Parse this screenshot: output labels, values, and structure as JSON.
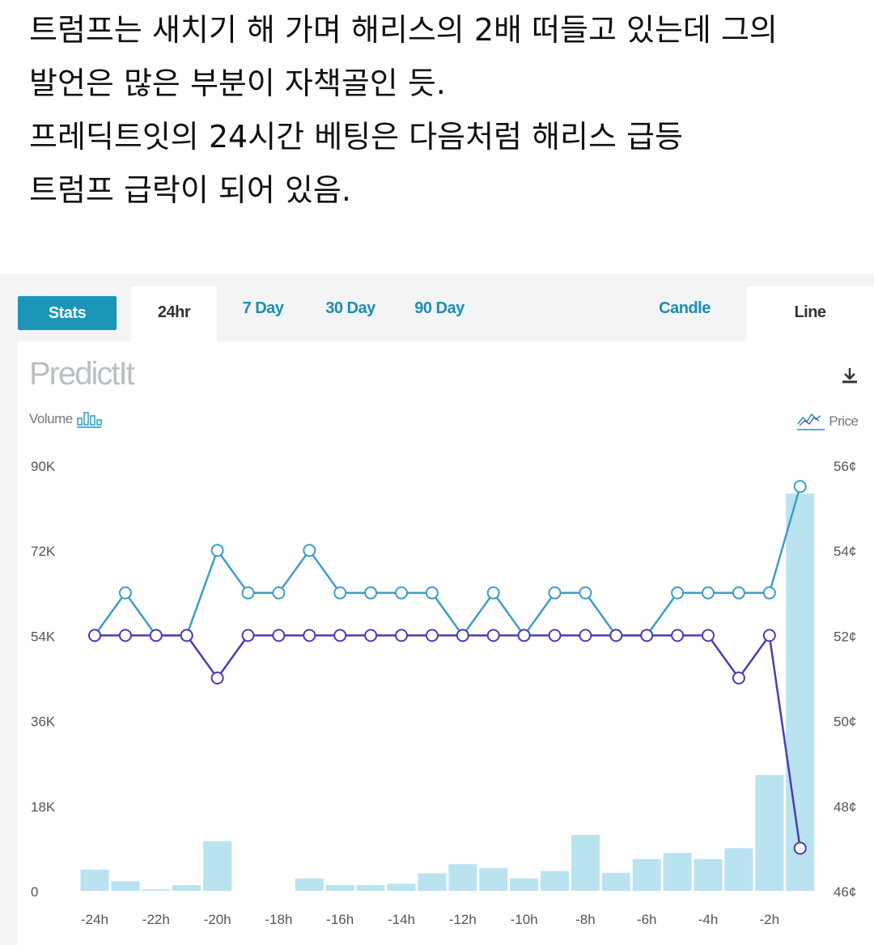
{
  "post": {
    "lines": [
      "트럼프는 새치기 해 가며 해리스의 2배 떠들고 있는데 그의",
      "발언은 많은 부분이 자책골인 듯.",
      "",
      "프레딕트잇의 24시간 베팅은 다음처럼 해리스 급등",
      "트럼프 급락이 되어 있음."
    ]
  },
  "widget": {
    "tabs": [
      {
        "label": "Stats",
        "active": false
      },
      {
        "label": "24hr",
        "active": true
      },
      {
        "label": "7 Day",
        "active": false
      },
      {
        "label": "30 Day",
        "active": false
      },
      {
        "label": "90 Day",
        "active": false
      },
      {
        "label": "Candle",
        "active": false
      },
      {
        "label": "Line",
        "active": true
      }
    ],
    "logo": "PredictIt",
    "download_icon": "download-icon",
    "volume_legend": "Volume",
    "price_legend": "Price"
  },
  "chart_data": {
    "type": "line",
    "x": [
      "-24h",
      "-23h",
      "-22h",
      "-21h",
      "-20h",
      "-19h",
      "-18h",
      "-17h",
      "-16h",
      "-15h",
      "-14h",
      "-13h",
      "-12h",
      "-11h",
      "-10h",
      "-9h",
      "-8h",
      "-7h",
      "-6h",
      "-5h",
      "-4h",
      "-3h",
      "-2h",
      "-1h"
    ],
    "x_tick_labels": [
      "-24h",
      "-22h",
      "-20h",
      "-18h",
      "-16h",
      "-14h",
      "-12h",
      "-10h",
      "-8h",
      "-6h",
      "-4h",
      "-2h"
    ],
    "left_axis": {
      "label": "Volume",
      "ticks": [
        "0",
        "18K",
        "36K",
        "54K",
        "72K",
        "90K"
      ],
      "ylim": [
        0,
        90000
      ]
    },
    "right_axis": {
      "label": "Price",
      "ticks": [
        "46¢",
        "48¢",
        "50¢",
        "52¢",
        "54¢",
        "56¢"
      ],
      "ylim": [
        46,
        56
      ]
    },
    "volume": [
      4500,
      2000,
      300,
      1200,
      10500,
      0,
      0,
      2600,
      1200,
      1200,
      1500,
      3700,
      5600,
      4800,
      2600,
      4200,
      11800,
      3800,
      6700,
      8000,
      6700,
      9000,
      24500,
      84000
    ],
    "series": [
      {
        "color": "#3c9ec6",
        "values": [
          52,
          53,
          52,
          52,
          54,
          53,
          53,
          54,
          53,
          53,
          53,
          53,
          52,
          53,
          52,
          53,
          53,
          52,
          52,
          53,
          53,
          53,
          53,
          55.5
        ]
      },
      {
        "color": "#4b3db0",
        "values": [
          52,
          52,
          52,
          52,
          51,
          52,
          52,
          52,
          52,
          52,
          52,
          52,
          52,
          52,
          52,
          52,
          52,
          52,
          52,
          52,
          52,
          51,
          52,
          47
        ]
      }
    ],
    "volume_color": "#b9e3ef",
    "grid": false,
    "legend_position": "top"
  }
}
